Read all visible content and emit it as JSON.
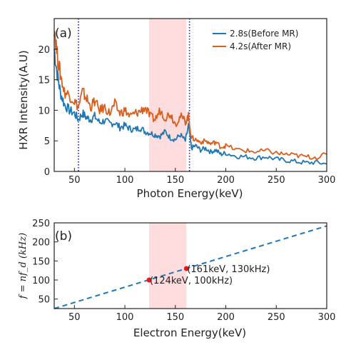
{
  "chart_data": [
    {
      "type": "line",
      "panel_label": "(a)",
      "xlabel": "Photon Energy(keV)",
      "ylabel": "HXR Intensity(A.U)",
      "xlim": [
        30,
        300
      ],
      "ylim": [
        0,
        25
      ],
      "xticks": [
        50,
        100,
        150,
        200,
        250,
        300
      ],
      "yticks": [
        0,
        5,
        10,
        15,
        20
      ],
      "legend_position": "top-right",
      "shaded_band": {
        "x_start": 124,
        "x_end": 161,
        "color": "#fcdcdc"
      },
      "vertical_lines": [
        {
          "x": 54,
          "color": "#1f1fbf",
          "style": "dotted"
        },
        {
          "x": 164,
          "color": "#1f1fbf",
          "style": "dotted"
        }
      ],
      "series": [
        {
          "name": "2.8s(Before MR)",
          "color": "#1f77b4",
          "x": [
            30,
            33,
            36,
            40,
            45,
            50,
            54,
            58,
            62,
            66,
            70,
            75,
            80,
            85,
            90,
            95,
            100,
            105,
            110,
            115,
            120,
            125,
            130,
            135,
            140,
            145,
            150,
            155,
            160,
            163,
            166,
            170,
            175,
            180,
            185,
            190,
            195,
            200,
            210,
            220,
            230,
            240,
            250,
            260,
            270,
            280,
            290,
            300
          ],
          "y": [
            20,
            16,
            13,
            11,
            10,
            9.5,
            8.5,
            9.5,
            8.8,
            8.5,
            9,
            8,
            8.3,
            7.8,
            8,
            7.2,
            7.5,
            7,
            6.8,
            7.2,
            6.5,
            6.3,
            6,
            5.8,
            6.5,
            5.5,
            5.2,
            6,
            5,
            7.5,
            3.8,
            4.2,
            3.5,
            3.8,
            3.2,
            3.5,
            2.8,
            3,
            2.5,
            2.4,
            2.2,
            2.4,
            2,
            1.8,
            1.6,
            1.4,
            1.5,
            1.2
          ]
        },
        {
          "name": "4.2s(After MR)",
          "color": "#d95f1e",
          "x": [
            30,
            33,
            36,
            40,
            45,
            50,
            54,
            58,
            62,
            66,
            70,
            75,
            80,
            85,
            90,
            95,
            100,
            105,
            110,
            115,
            120,
            125,
            130,
            135,
            140,
            145,
            150,
            155,
            160,
            163,
            166,
            170,
            175,
            180,
            185,
            190,
            195,
            200,
            210,
            220,
            230,
            240,
            250,
            260,
            270,
            280,
            290,
            300
          ],
          "y": [
            24,
            19,
            16,
            13,
            12.5,
            11.5,
            10.5,
            13,
            12,
            10.5,
            11.5,
            10,
            10.5,
            9.5,
            11,
            9.5,
            10,
            9,
            9.5,
            9.8,
            10.5,
            9,
            8.5,
            10,
            8.8,
            9.5,
            7.8,
            9,
            8.2,
            9,
            5.5,
            5.2,
            4.8,
            5,
            4.5,
            4.8,
            4,
            4.2,
            3.6,
            3.4,
            3.2,
            3.4,
            3,
            2.8,
            2.6,
            2.4,
            2.3,
            2.8
          ]
        }
      ]
    },
    {
      "type": "line",
      "panel_label": "(b)",
      "xlabel": "Electron Energy(keV)",
      "ylabel": "f = nf_d (kHz)",
      "xlim": [
        30,
        300
      ],
      "ylim": [
        25,
        250
      ],
      "xticks": [
        50,
        100,
        150,
        200,
        250,
        300
      ],
      "yticks": [
        50,
        100,
        150,
        200,
        250
      ],
      "shaded_band": {
        "x_start": 124,
        "x_end": 161,
        "color": "#fcdcdc"
      },
      "series": [
        {
          "name": "",
          "color": "#1f77b4",
          "style": "dashed",
          "x": [
            30,
            300
          ],
          "y": [
            25,
            242
          ]
        }
      ],
      "points": [
        {
          "x": 124,
          "y": 100,
          "label": "(124keV, 100kHz)",
          "color": "#e41a1c"
        },
        {
          "x": 161,
          "y": 130,
          "label": "(161keV, 130kHz)",
          "color": "#e41a1c"
        }
      ]
    }
  ]
}
